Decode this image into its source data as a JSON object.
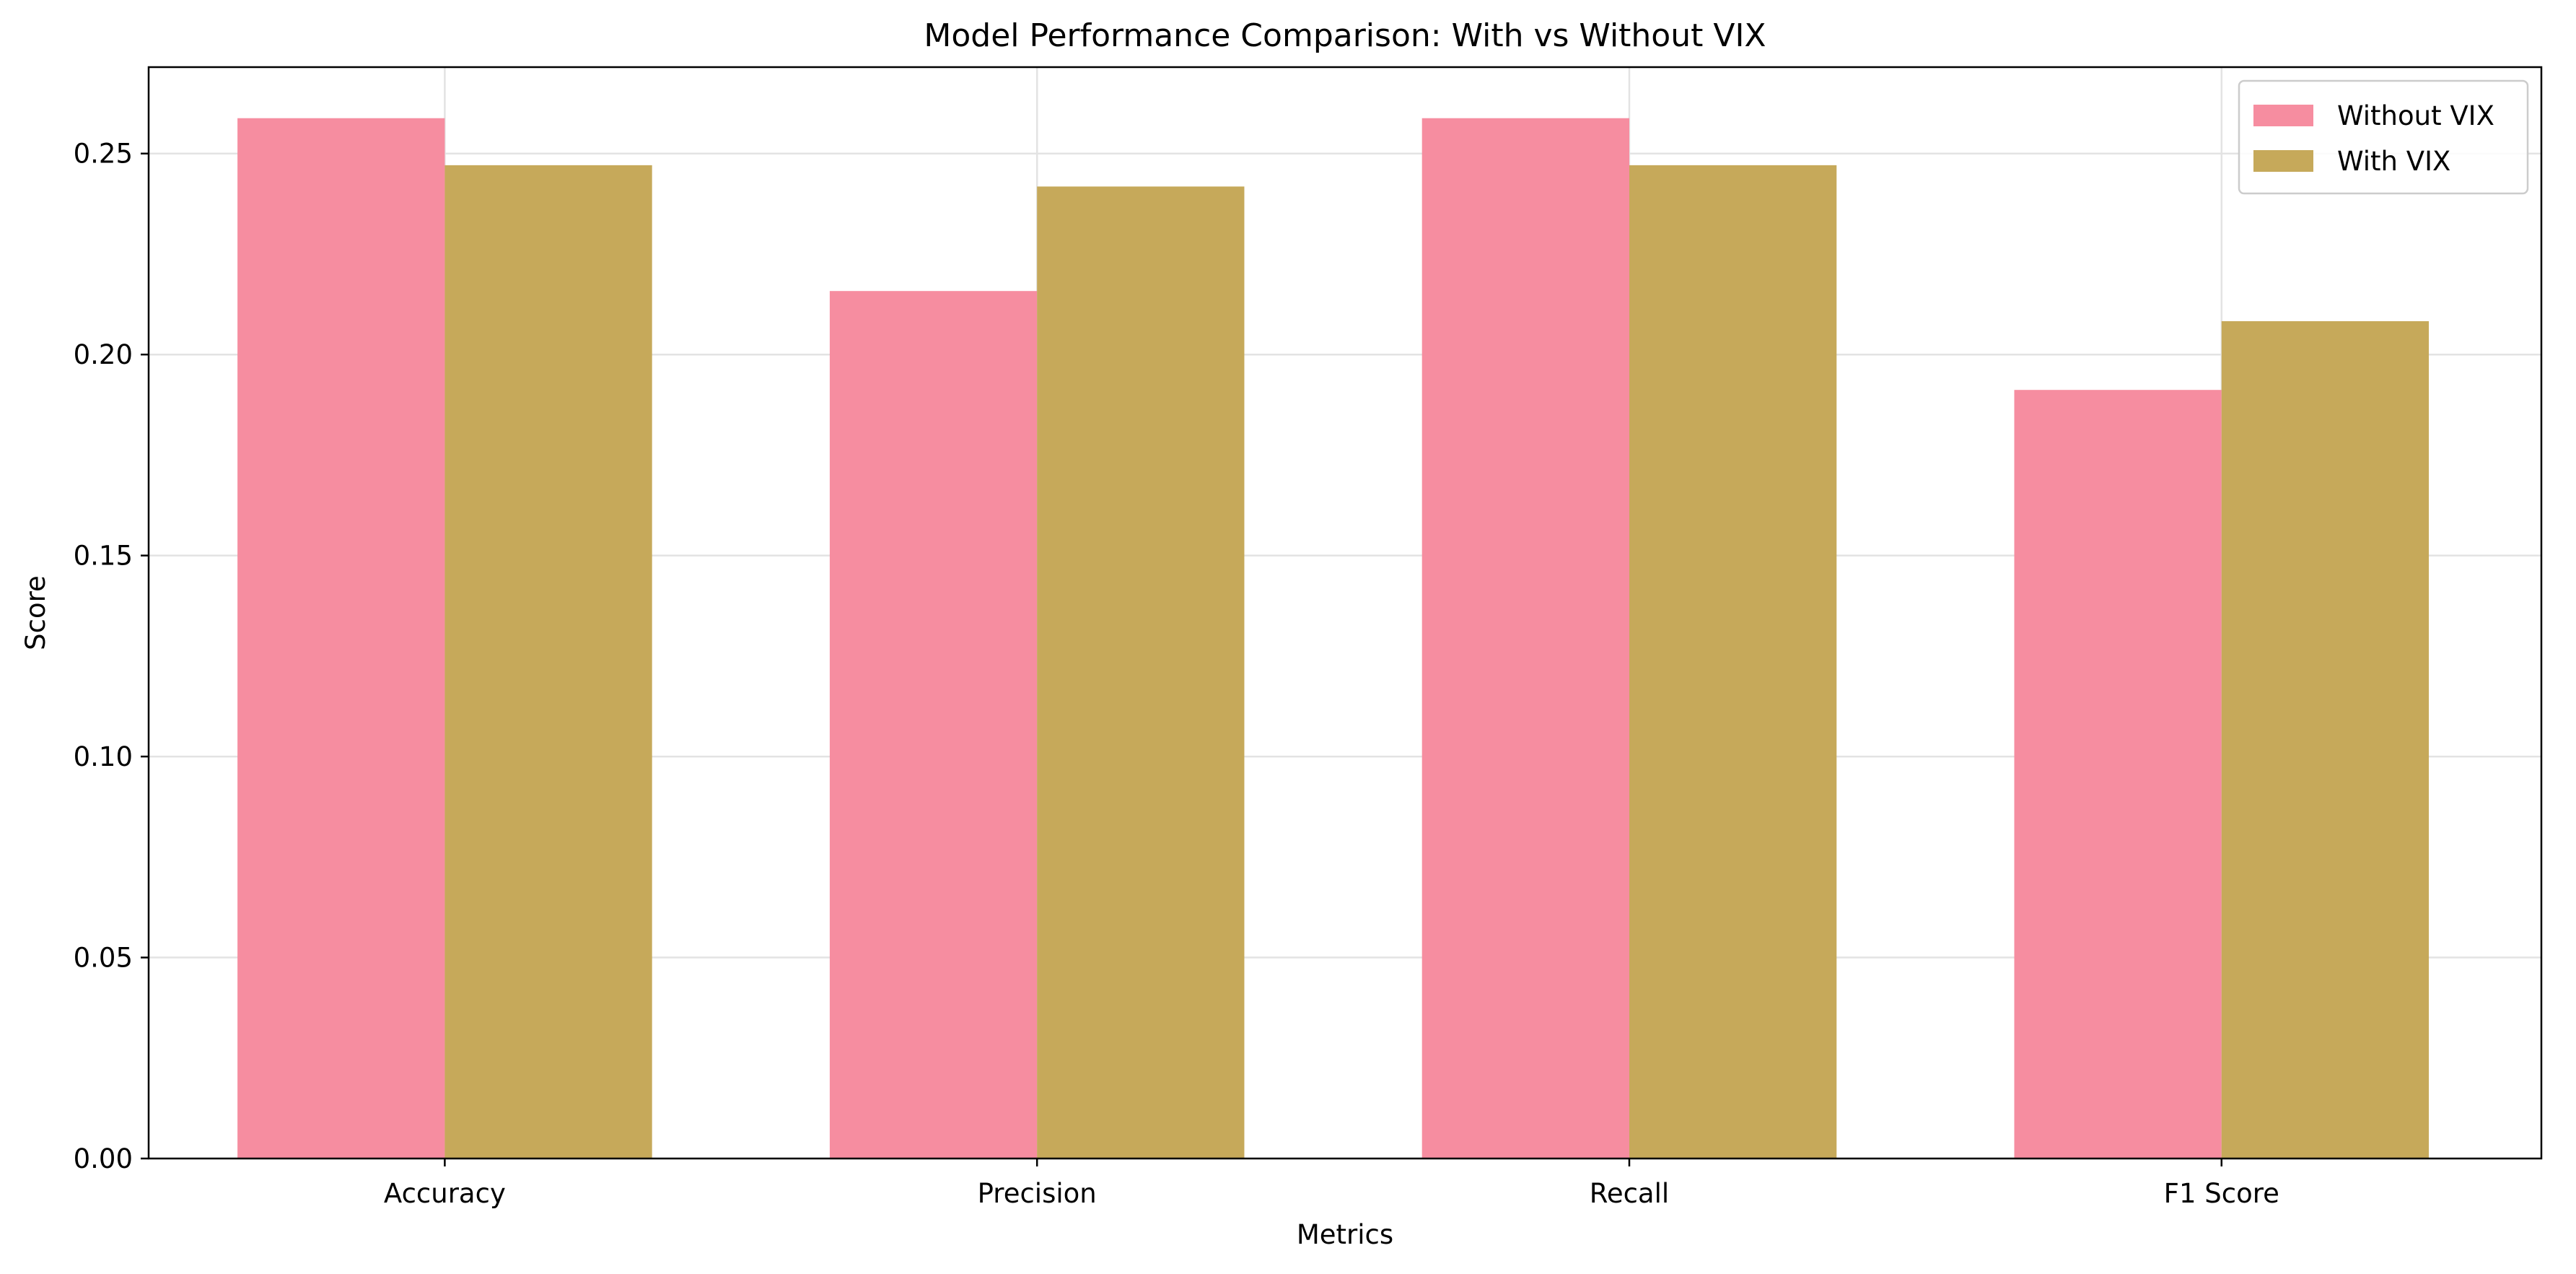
{
  "chart_data": {
    "type": "bar",
    "title": "Model Performance Comparison: With vs Without VIX",
    "xlabel": "Metrics",
    "ylabel": "Score",
    "categories": [
      "Accuracy",
      "Precision",
      "Recall",
      "F1 Score"
    ],
    "series": [
      {
        "name": "Without VIX",
        "values": [
          0.2588,
          0.2158,
          0.2588,
          0.1912
        ],
        "color": "#f68da0"
      },
      {
        "name": "With VIX",
        "values": [
          0.2471,
          0.2418,
          0.2471,
          0.2083
        ],
        "color": "#c6a95a"
      }
    ],
    "ylim": [
      0,
      0.2715
    ],
    "yticks": [
      0.0,
      0.05,
      0.1,
      0.15,
      0.2,
      0.25
    ],
    "ytick_labels": [
      "0.00",
      "0.05",
      "0.10",
      "0.15",
      "0.20",
      "0.25"
    ],
    "grid": true,
    "legend_position": "top-right"
  }
}
